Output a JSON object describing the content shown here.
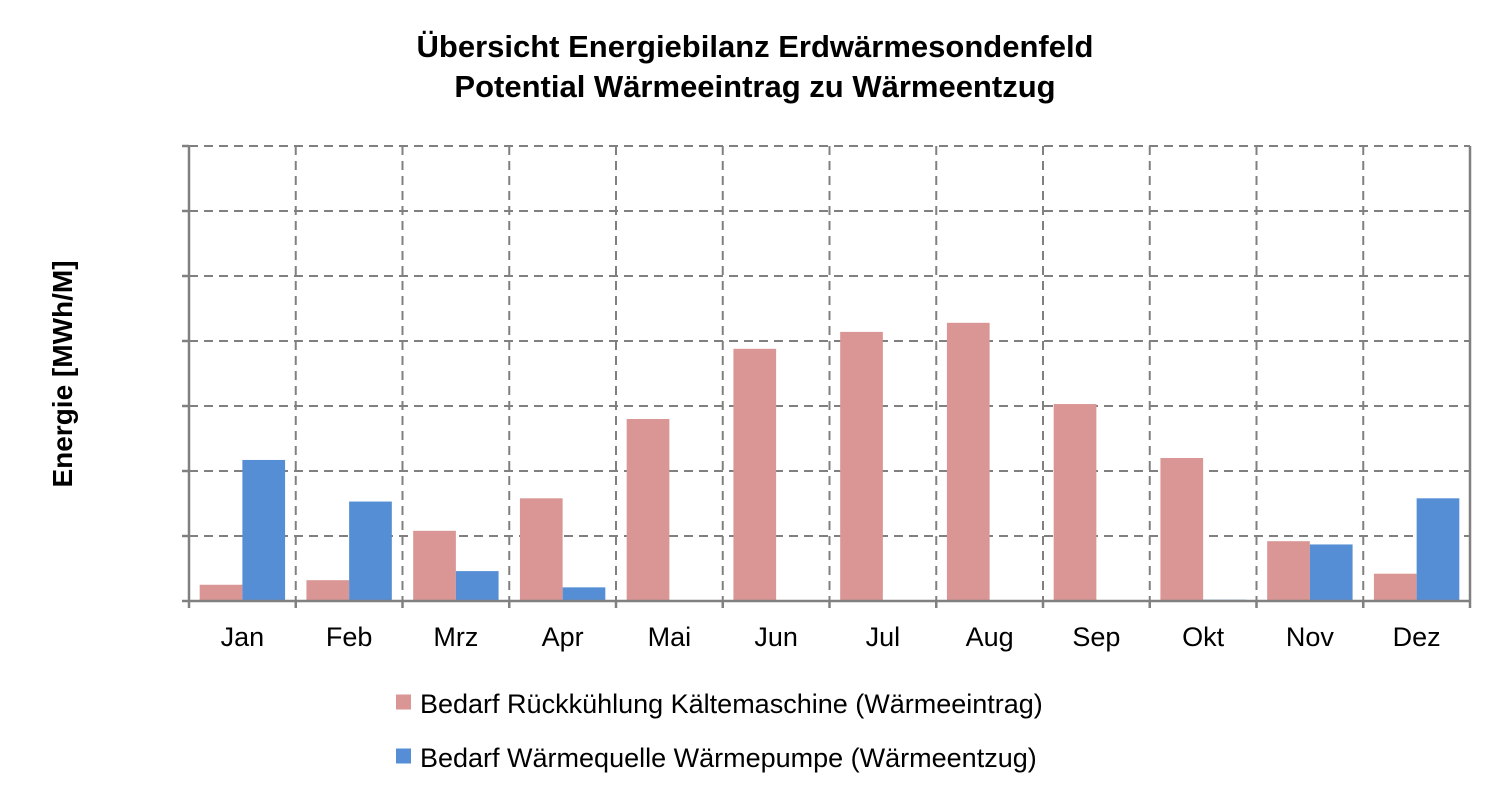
{
  "chart_data": {
    "type": "bar",
    "title": "Übersicht Energiebilanz Erdwärmesondenfeld",
    "subtitle": "Potential Wärmeeintrag zu Wärmeentzug",
    "xlabel": "",
    "ylabel": "Energie [MWh/M]",
    "categories": [
      "Jan",
      "Feb",
      "Mrz",
      "Apr",
      "Mai",
      "Jun",
      "Jul",
      "Aug",
      "Sep",
      "Okt",
      "Nov",
      "Dez"
    ],
    "series": [
      {
        "name": "Bedarf Rückkühlung Kältemaschine (Wärmeeintrag)",
        "color": "#d99694",
        "values": [
          0.25,
          0.32,
          1.08,
          1.58,
          2.8,
          3.88,
          4.14,
          4.28,
          3.03,
          2.2,
          0.92,
          0.42
        ]
      },
      {
        "name": "Bedarf Wärmequelle Wärmepumpe (Wärmeentzug)",
        "color": "#558ed5",
        "values": [
          2.17,
          1.53,
          0.46,
          0.21,
          0,
          0,
          0,
          0,
          0,
          0.02,
          0.87,
          1.58
        ]
      }
    ],
    "ylim": [
      0,
      7
    ],
    "ytick_step": 1,
    "yticklabels_shown": false,
    "grid": true,
    "grid_style": "dashed",
    "legend_position": "bottom"
  }
}
